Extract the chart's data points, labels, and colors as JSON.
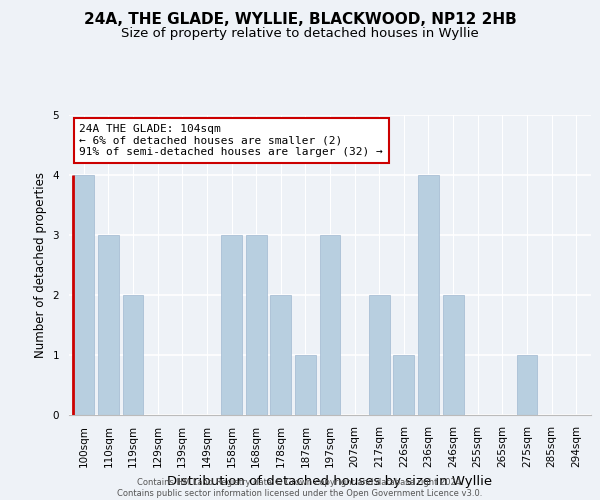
{
  "title": "24A, THE GLADE, WYLLIE, BLACKWOOD, NP12 2HB",
  "subtitle": "Size of property relative to detached houses in Wyllie",
  "xlabel": "Distribution of detached houses by size in Wyllie",
  "ylabel": "Number of detached properties",
  "bar_labels": [
    "100sqm",
    "110sqm",
    "119sqm",
    "129sqm",
    "139sqm",
    "149sqm",
    "158sqm",
    "168sqm",
    "178sqm",
    "187sqm",
    "197sqm",
    "207sqm",
    "217sqm",
    "226sqm",
    "236sqm",
    "246sqm",
    "255sqm",
    "265sqm",
    "275sqm",
    "285sqm",
    "294sqm"
  ],
  "bar_heights": [
    4,
    3,
    2,
    0,
    0,
    0,
    3,
    3,
    2,
    1,
    3,
    0,
    2,
    1,
    4,
    2,
    0,
    0,
    1,
    0,
    0
  ],
  "bar_color": "#b8cfe0",
  "bar_edge_color": "#a0b8d0",
  "highlight_bar_index": 0,
  "highlight_color": "#cc0000",
  "annotation_line1": "24A THE GLADE: 104sqm",
  "annotation_line2": "← 6% of detached houses are smaller (2)",
  "annotation_line3": "91% of semi-detached houses are larger (32) →",
  "annotation_box_facecolor": "#ffffff",
  "annotation_box_edgecolor": "#cc0000",
  "ylim": [
    0,
    5
  ],
  "yticks": [
    0,
    1,
    2,
    3,
    4,
    5
  ],
  "footer_line1": "Contains HM Land Registry data © Crown copyright and database right 2024.",
  "footer_line2": "Contains public sector information licensed under the Open Government Licence v3.0.",
  "background_color": "#eef2f7",
  "title_fontsize": 11,
  "subtitle_fontsize": 9.5,
  "ylabel_fontsize": 8.5,
  "xlabel_fontsize": 9.5,
  "annotation_fontsize": 8,
  "tick_fontsize": 7.5,
  "footer_fontsize": 6
}
